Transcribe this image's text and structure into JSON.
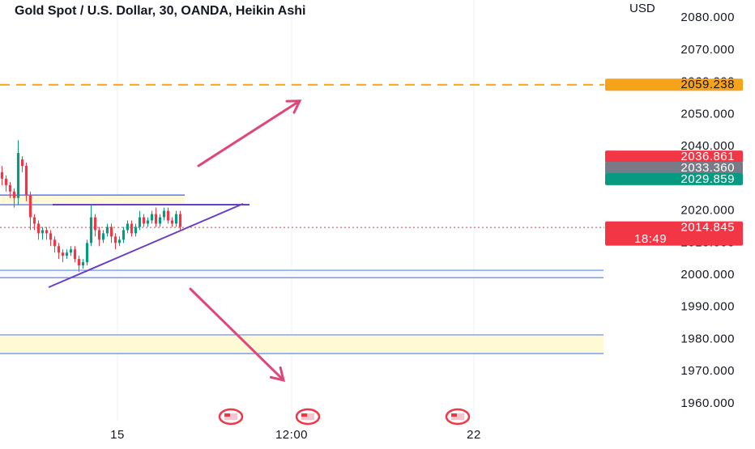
{
  "chart_data": {
    "type": "candlestick",
    "title": "Gold Spot / U.S. Dollar, 30, OANDA, Heikin Ashi",
    "currency": "USD",
    "up_color": "#089981",
    "down_color": "#f23645",
    "open": [
      2032,
      2030,
      2028,
      2026,
      2024,
      2036,
      2034,
      2025,
      2018,
      2016,
      2013,
      2014,
      2013,
      2011,
      2009,
      2007,
      2006,
      2007,
      2008,
      2005,
      2003,
      2004,
      2010,
      2018,
      2014,
      2011,
      2013,
      2015,
      2012,
      2010,
      2011,
      2014,
      2016,
      2013,
      2015,
      2018,
      2016,
      2017,
      2019,
      2016,
      2018,
      2020,
      2017,
      2016,
      2019
    ],
    "high": [
      2034,
      2031,
      2029,
      2027,
      2042,
      2037,
      2035,
      2026,
      2019,
      2017,
      2015,
      2015,
      2014,
      2012,
      2010,
      2008,
      2008,
      2009,
      2009,
      2006,
      2005,
      2011,
      2022,
      2019,
      2015,
      2014,
      2016,
      2016,
      2013,
      2012,
      2015,
      2017,
      2017,
      2016,
      2020,
      2019,
      2018,
      2020,
      2021,
      2019,
      2021,
      2021,
      2018,
      2020,
      2020
    ],
    "low": [
      2028,
      2026,
      2024,
      2021,
      2022,
      2032,
      2023,
      2014,
      2014,
      2011,
      2011,
      2011,
      2009,
      2007,
      2005,
      2004,
      2005,
      2006,
      2004,
      2001,
      2002,
      2003,
      2009,
      2012,
      2009,
      2010,
      2012,
      2010,
      2008,
      2009,
      2010,
      2013,
      2012,
      2012,
      2014,
      2015,
      2015,
      2016,
      2015,
      2015,
      2017,
      2016,
      2015,
      2015,
      2014
    ],
    "close": [
      2030,
      2028,
      2026,
      2024,
      2038,
      2034,
      2025,
      2018,
      2016,
      2013,
      2014,
      2013,
      2011,
      2009,
      2007,
      2006,
      2007,
      2008,
      2005,
      2003,
      2004,
      2010,
      2018,
      2014,
      2011,
      2013,
      2015,
      2012,
      2010,
      2011,
      2014,
      2016,
      2013,
      2015,
      2018,
      2016,
      2017,
      2019,
      2016,
      2018,
      2020,
      2017,
      2016,
      2019,
      2015
    ],
    "xlim": [
      0,
      149
    ],
    "xticks": [
      {
        "value": 29,
        "label": "15"
      },
      {
        "value": 72,
        "label": "12:00"
      },
      {
        "value": 117,
        "label": "22"
      }
    ],
    "ylim": [
      1954.7,
      2085.6
    ],
    "yticks": [
      {
        "value": 1960,
        "label": "1960.000"
      },
      {
        "value": 1970,
        "label": "1970.000"
      },
      {
        "value": 1980,
        "label": "1980.000"
      },
      {
        "value": 1990,
        "label": "1990.000"
      },
      {
        "value": 2000,
        "label": "2000.000"
      },
      {
        "value": 2010,
        "label": "2010.000"
      },
      {
        "value": 2020,
        "label": "2020.000"
      },
      {
        "value": 2030,
        "label": "2030.000"
      },
      {
        "value": 2040,
        "label": "2040.000"
      },
      {
        "value": 2050,
        "label": "2050.000"
      },
      {
        "value": 2060,
        "label": "2060.000"
      },
      {
        "value": 2070,
        "label": "2070.000"
      },
      {
        "value": 2080,
        "label": "2080.000"
      }
    ],
    "grid": "x",
    "zones": [
      {
        "x": [
          0,
          45.6
        ],
        "top": 2024.9,
        "bottom": 2021.9,
        "fill": "#fff9d6",
        "stroke": "#3d5afe"
      },
      {
        "x": [
          0,
          149
        ],
        "top": 2001.5,
        "bottom": 1999.2,
        "fill": "#f6f9ff",
        "stroke": "#5b8bf0"
      },
      {
        "x": [
          0,
          149
        ],
        "top": 1981.4,
        "bottom": 1975.6,
        "fill": "#fff9d6",
        "stroke": "#5b8bf0"
      }
    ],
    "trendlines": [
      {
        "x": [
          12,
          60
        ],
        "y": [
          1996.2,
          2022.2
        ],
        "color": "#6a3fc8"
      },
      {
        "x": [
          13,
          61.6
        ],
        "y": [
          2021.9,
          2021.9
        ],
        "color": "#6a3fc8"
      }
    ],
    "arrows": [
      {
        "x": [
          49,
          74
        ],
        "y": [
          2034,
          2054.2
        ],
        "color": "#e0457b"
      },
      {
        "x": [
          47,
          70
        ],
        "y": [
          1995.7,
          1967.3
        ],
        "color": "#e0457b"
      }
    ],
    "price_labels": [
      {
        "value": 2059.238,
        "color": "#f7a21b",
        "text_color": "#131722",
        "line": "dashed"
      },
      {
        "value": 2036.861,
        "color": "#f23645",
        "text_color": "#ffffff"
      },
      {
        "value": 2033.36,
        "label": "2033.360",
        "color": "#787b86",
        "text_color": "#ffffff"
      },
      {
        "value": 2029.859,
        "color": "#089981",
        "text_color": "#ffffff"
      },
      {
        "value": 2014.845,
        "color": "#f23645",
        "text_color": "#ffffff",
        "line": "dotted",
        "countdown": "18:49"
      }
    ]
  }
}
